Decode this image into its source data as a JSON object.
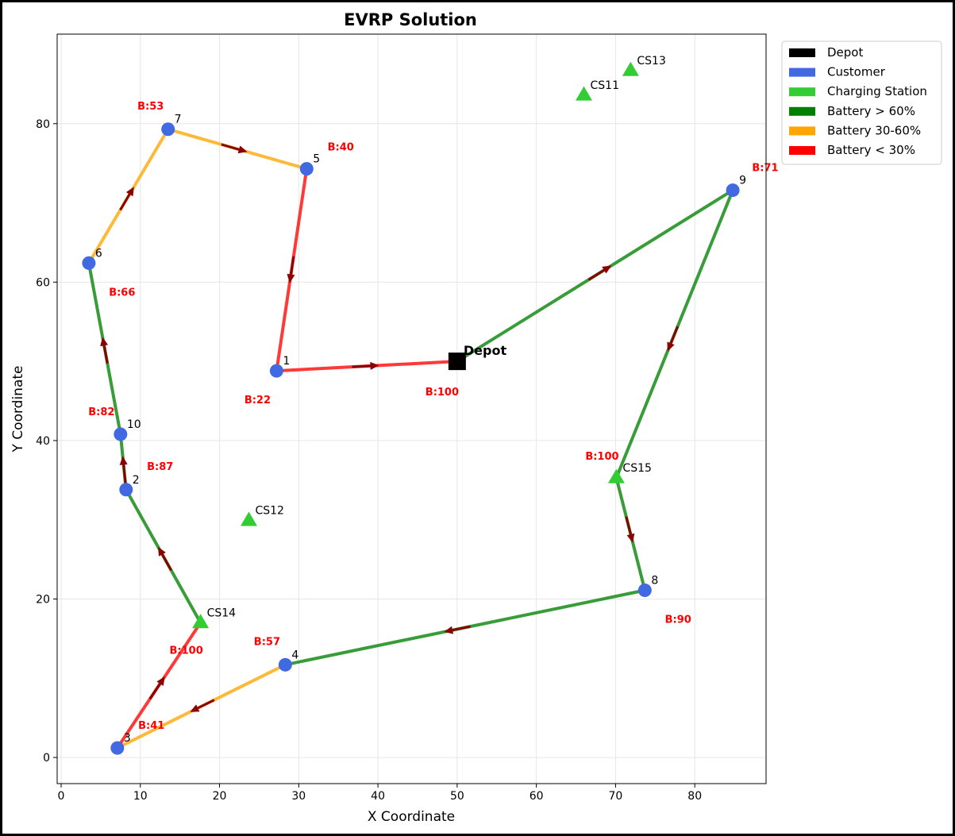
{
  "chart_data": {
    "type": "scatter",
    "title": "EVRP Solution",
    "xlabel": "X Coordinate",
    "ylabel": "Y Coordinate",
    "xlim": [
      -0.5,
      89
    ],
    "ylim": [
      -3.3,
      91.3
    ],
    "x_ticks": [
      0,
      10,
      20,
      30,
      40,
      50,
      60,
      70,
      80
    ],
    "y_ticks": [
      0,
      20,
      40,
      60,
      80
    ],
    "grid": true,
    "legend_position": "outside-top-right",
    "colors": {
      "depot": "#000000",
      "customer": "#4169e1",
      "station": "#32cd32",
      "battery_high": "#008000",
      "battery_mid": "#ffa500",
      "battery_low": "#ff0000",
      "arrow": "#8b0000",
      "battery_label": "#ff0000"
    },
    "legend": [
      {
        "label": "Depot",
        "color": "#000000"
      },
      {
        "label": "Customer",
        "color": "#4169e1"
      },
      {
        "label": "Charging Station",
        "color": "#32cd32"
      },
      {
        "label": "Battery > 60%",
        "color": "#008000"
      },
      {
        "label": "Battery 30-60%",
        "color": "#ffa500"
      },
      {
        "label": "Battery < 30%",
        "color": "#ff0000"
      }
    ],
    "nodes": [
      {
        "id": "depot",
        "kind": "depot",
        "label": "Depot",
        "x": 50,
        "y": 50
      },
      {
        "id": "1",
        "kind": "customer",
        "label": "1",
        "x": 27.2,
        "y": 48.8
      },
      {
        "id": "2",
        "kind": "customer",
        "label": "2",
        "x": 8.2,
        "y": 33.8
      },
      {
        "id": "3",
        "kind": "customer",
        "label": "3",
        "x": 7.1,
        "y": 1.2
      },
      {
        "id": "4",
        "kind": "customer",
        "label": "4",
        "x": 28.3,
        "y": 11.7
      },
      {
        "id": "5",
        "kind": "customer",
        "label": "5",
        "x": 31.0,
        "y": 74.3
      },
      {
        "id": "6",
        "kind": "customer",
        "label": "6",
        "x": 3.5,
        "y": 62.4
      },
      {
        "id": "7",
        "kind": "customer",
        "label": "7",
        "x": 13.5,
        "y": 79.3
      },
      {
        "id": "8",
        "kind": "customer",
        "label": "8",
        "x": 73.7,
        "y": 21.1
      },
      {
        "id": "9",
        "kind": "customer",
        "label": "9",
        "x": 84.8,
        "y": 71.6
      },
      {
        "id": "10",
        "kind": "customer",
        "label": "10",
        "x": 7.5,
        "y": 40.8
      },
      {
        "id": "CS11",
        "kind": "station",
        "label": "CS11",
        "x": 66.0,
        "y": 83.6
      },
      {
        "id": "CS12",
        "kind": "station",
        "label": "CS12",
        "x": 23.7,
        "y": 29.9
      },
      {
        "id": "CS13",
        "kind": "station",
        "label": "CS13",
        "x": 71.9,
        "y": 86.7
      },
      {
        "id": "CS14",
        "kind": "station",
        "label": "CS14",
        "x": 17.6,
        "y": 17.0
      },
      {
        "id": "CS15",
        "kind": "station",
        "label": "CS15",
        "x": 70.1,
        "y": 35.3
      }
    ],
    "route": [
      {
        "from": "depot",
        "to": "9",
        "level": "high"
      },
      {
        "from": "9",
        "to": "CS15",
        "level": "high"
      },
      {
        "from": "CS15",
        "to": "8",
        "level": "high"
      },
      {
        "from": "8",
        "to": "4",
        "level": "high"
      },
      {
        "from": "4",
        "to": "3",
        "level": "mid"
      },
      {
        "from": "3",
        "to": "CS14",
        "level": "low"
      },
      {
        "from": "CS14",
        "to": "2",
        "level": "high"
      },
      {
        "from": "2",
        "to": "10",
        "level": "high"
      },
      {
        "from": "10",
        "to": "6",
        "level": "high"
      },
      {
        "from": "6",
        "to": "7",
        "level": "mid"
      },
      {
        "from": "7",
        "to": "5",
        "level": "mid"
      },
      {
        "from": "5",
        "to": "1",
        "level": "low"
      },
      {
        "from": "1",
        "to": "depot",
        "level": "low"
      }
    ],
    "battery_labels": [
      {
        "text": "B:100",
        "x": 48.1,
        "y": 46.2
      },
      {
        "text": "B:71",
        "x": 88.9,
        "y": 74.5
      },
      {
        "text": "B:100",
        "x": 68.3,
        "y": 38.1
      },
      {
        "text": "B:90",
        "x": 77.9,
        "y": 17.5
      },
      {
        "text": "B:57",
        "x": 26.0,
        "y": 14.7
      },
      {
        "text": "B:41",
        "x": 11.4,
        "y": 4.1
      },
      {
        "text": "B:100",
        "x": 15.8,
        "y": 13.6
      },
      {
        "text": "B:87",
        "x": 12.5,
        "y": 36.8
      },
      {
        "text": "B:82",
        "x": 5.1,
        "y": 43.7
      },
      {
        "text": "B:66",
        "x": 7.7,
        "y": 58.8
      },
      {
        "text": "B:53",
        "x": 11.3,
        "y": 82.3
      },
      {
        "text": "B:40",
        "x": 35.3,
        "y": 77.1
      },
      {
        "text": "B:22",
        "x": 24.8,
        "y": 45.2
      }
    ]
  }
}
